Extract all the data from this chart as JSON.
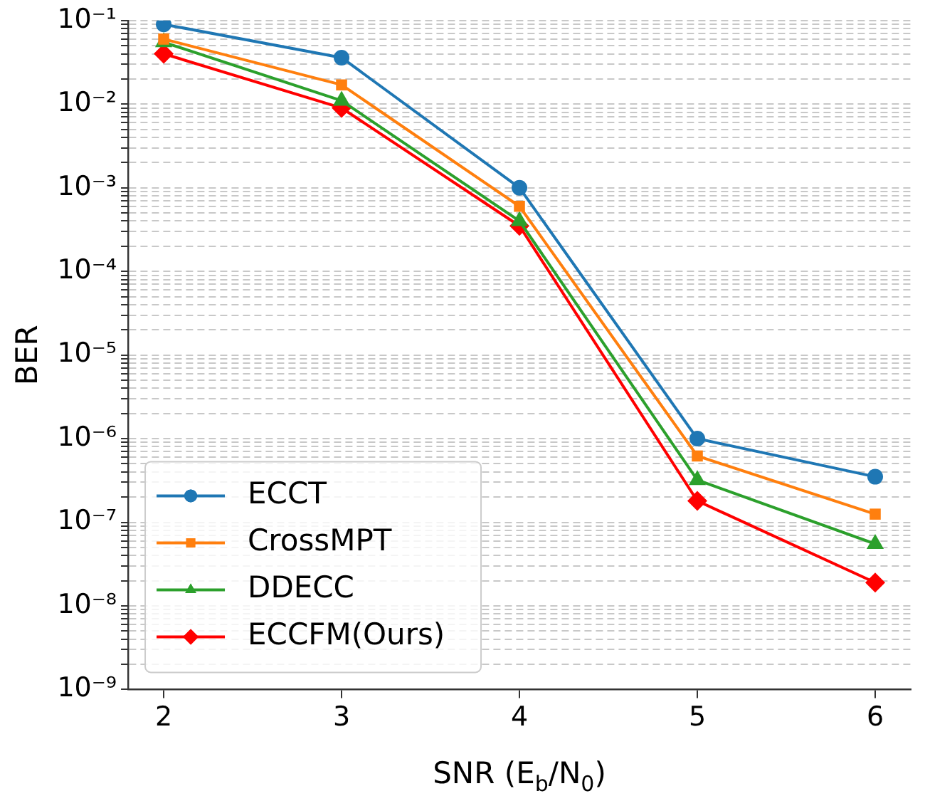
{
  "chart_data": {
    "type": "line",
    "xlabel": "SNR (E$_{b}$/N$_{0}$)",
    "ylabel": "BER",
    "x": [
      2,
      3,
      4,
      5,
      6
    ],
    "xlim": [
      1.8,
      6.2
    ],
    "xticks": [
      2,
      3,
      4,
      5,
      6
    ],
    "log": true,
    "ylim": [
      1e-09,
      0.1
    ],
    "yticks": [
      {
        "value": 1e-09,
        "label": "10⁻⁹"
      },
      {
        "value": 1e-08,
        "label": "10⁻⁸"
      },
      {
        "value": 1e-07,
        "label": "10⁻⁷"
      },
      {
        "value": 1e-06,
        "label": "10⁻⁶"
      },
      {
        "value": 1e-05,
        "label": "10⁻⁵"
      },
      {
        "value": 0.0001,
        "label": "10⁻⁴"
      },
      {
        "value": 0.001,
        "label": "10⁻³"
      },
      {
        "value": 0.01,
        "label": "10⁻²"
      },
      {
        "value": 0.1,
        "label": "10⁻¹"
      }
    ],
    "grid": "y",
    "legend": "bottom left",
    "series": [
      {
        "name": "ECCT",
        "color": "#1f77b4",
        "marker": "circle",
        "values": [
          0.09,
          0.036,
          0.001,
          1e-06,
          3.5e-07
        ]
      },
      {
        "name": "CrossMPT",
        "color": "#ff7f0e",
        "marker": "square",
        "values": [
          0.06,
          0.017,
          0.0006,
          6.2e-07,
          1.25e-07
        ]
      },
      {
        "name": "DDECC",
        "color": "#2ca02c",
        "marker": "triangle",
        "values": [
          0.055,
          0.011,
          0.0004,
          3.2e-07,
          5.5e-08
        ]
      },
      {
        "name": "ECCFM(Ours)",
        "color": "#ff0000",
        "marker": "diamond",
        "values": [
          0.04,
          0.009,
          0.00035,
          1.8e-07,
          1.9e-08
        ]
      }
    ]
  }
}
